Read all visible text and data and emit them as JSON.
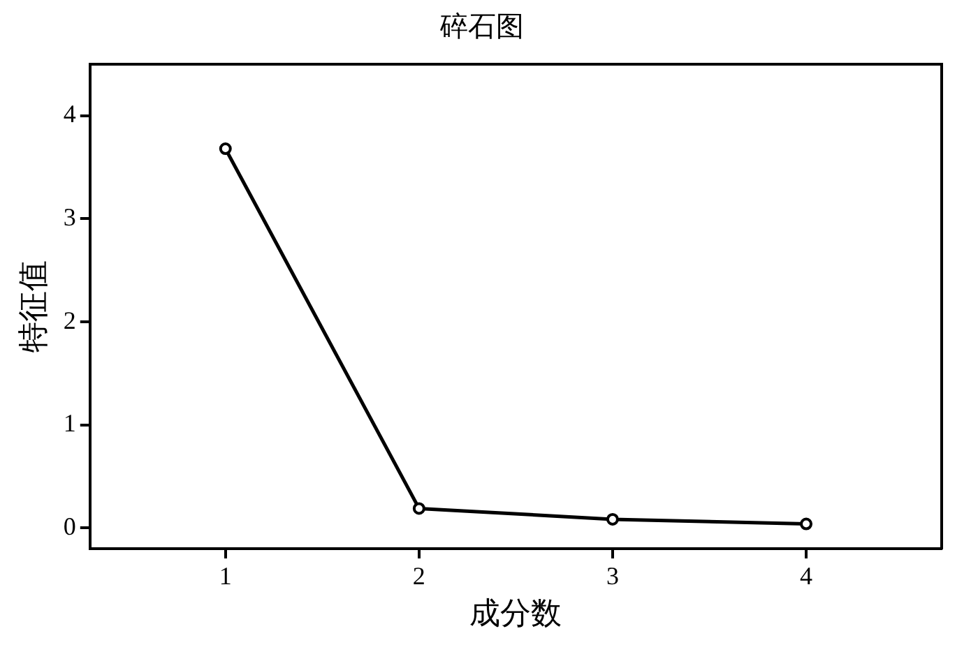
{
  "chart_data": {
    "type": "line",
    "title": "碎石图",
    "xlabel": "成分数",
    "ylabel": "特征值",
    "x": [
      1,
      2,
      3,
      4
    ],
    "series": [
      {
        "color": "#000000",
        "values": [
          3.68,
          0.19,
          0.085,
          0.04
        ]
      }
    ],
    "xlim": [
      0.3,
      4.7
    ],
    "xticks": [
      1,
      2,
      3,
      4
    ],
    "ylim": [
      -0.2,
      4.5
    ],
    "yticks": [
      0,
      1,
      2,
      3,
      4
    ],
    "grid": false,
    "legend": false,
    "marker": "circle",
    "line_style": "solid"
  }
}
